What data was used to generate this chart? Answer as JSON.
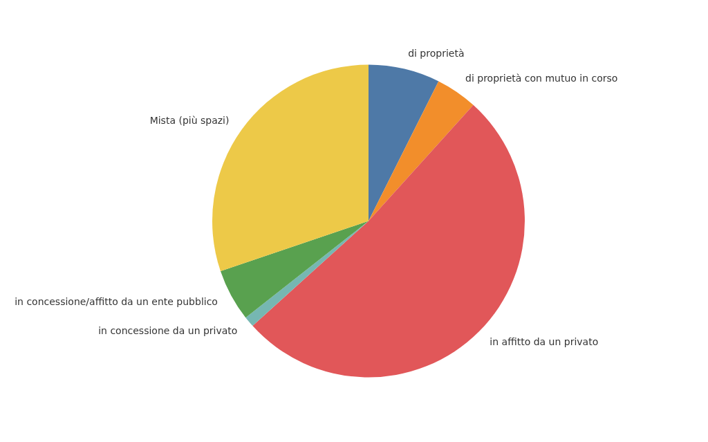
{
  "chart_data": {
    "type": "pie",
    "categories": [
      "di proprietà",
      "di proprietà con mutuo in corso",
      "in affitto da un privato",
      "in concessione da un privato",
      "in concessione/affitto da un ente pubblico",
      "Mista (più spazi)"
    ],
    "values": [
      7.4,
      4.3,
      51.6,
      1.1,
      5.4,
      30.2
    ],
    "colors": [
      "#4e79a7",
      "#f28e2b",
      "#e15759",
      "#76b7b2",
      "#59a14f",
      "#edc948"
    ],
    "legend": false
  }
}
